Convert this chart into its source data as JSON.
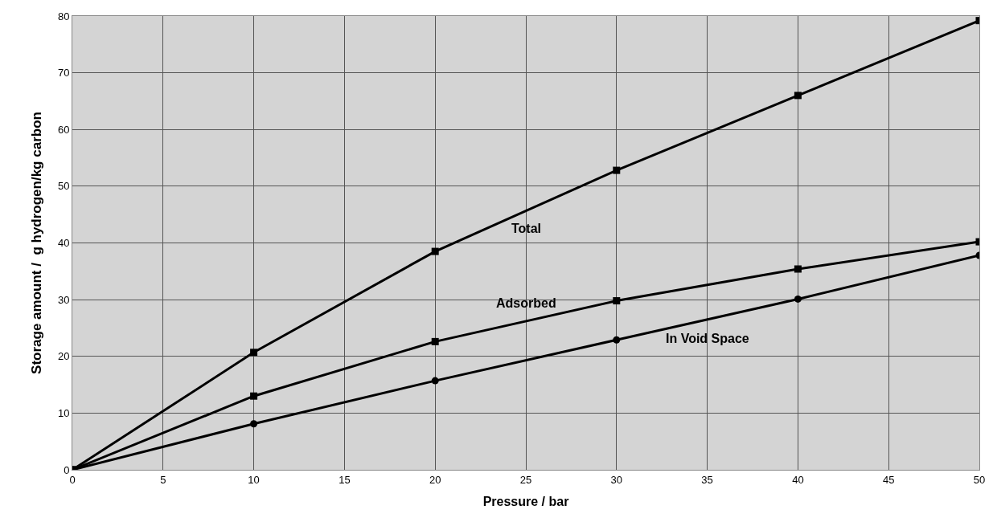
{
  "chart_data": {
    "type": "line",
    "xlabel": "Pressure / bar",
    "ylabel": "Storage amount /  g hydrogen/kg carbon",
    "x": [
      0,
      10,
      20,
      30,
      40,
      50
    ],
    "series": [
      {
        "name": "Total",
        "color": "#000000",
        "marker": "square",
        "values": [
          0,
          20.7,
          38.5,
          52.8,
          66.0,
          79.2
        ]
      },
      {
        "name": "Adsorbed",
        "color": "#000000",
        "marker": "square",
        "values": [
          0,
          13.0,
          22.6,
          29.8,
          35.4,
          40.2
        ]
      },
      {
        "name": "In Void Space",
        "color": "#000000",
        "marker": "circle",
        "values": [
          0,
          8.1,
          15.7,
          22.9,
          30.1,
          37.8
        ]
      }
    ],
    "xlim": [
      0,
      50
    ],
    "xticks": [
      0,
      5,
      10,
      15,
      20,
      25,
      30,
      35,
      40,
      45,
      50
    ],
    "ylim": [
      0,
      80
    ],
    "yticks": [
      0,
      10,
      20,
      30,
      40,
      50,
      60,
      70,
      80
    ],
    "grid": true,
    "legend": false,
    "line_style": "solid"
  }
}
